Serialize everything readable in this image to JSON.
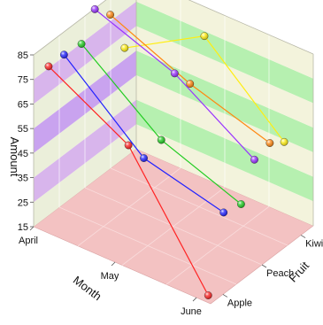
{
  "chart_data": {
    "type": "line",
    "subtype": "3d-line",
    "title": "",
    "xlabel": "Month",
    "ylabel": "Amount",
    "zlabel": "Fruit",
    "categories": [
      "April",
      "May",
      "June"
    ],
    "depth_categories": [
      "Apple",
      "Peach",
      "Kiwi"
    ],
    "ylim": [
      15,
      85
    ],
    "yticks": [
      15,
      25,
      35,
      45,
      55,
      65,
      75,
      85
    ],
    "grid": true,
    "legend": "none",
    "series": [
      {
        "color": "#ff2222",
        "depth": 0.0,
        "values": [
          80,
          62,
          15
        ]
      },
      {
        "color": "#2222ff",
        "depth": 0.15,
        "values": [
          80,
          52,
          44
        ]
      },
      {
        "color": "#22cc22",
        "depth": 0.32,
        "values": [
          79,
          54,
          42
        ]
      },
      {
        "color": "#9933ff",
        "depth": 0.45,
        "values": [
          89,
          77,
          56
        ]
      },
      {
        "color": "#ff8811",
        "depth": 0.6,
        "values": [
          82,
          68,
          58
        ]
      },
      {
        "color": "#ffee11",
        "depth": 0.74,
        "values": [
          64,
          83,
          54
        ]
      }
    ],
    "colors": {
      "back_wall_band_light": "#ebefda",
      "back_wall_band_dark": "#d8b5ec",
      "back_wall_band_dark_mid": "#c9a3ef",
      "side_wall_band_light": "#f3f3dc",
      "side_wall_band_dark": "#b6f0b0",
      "floor": "#f3c2c2",
      "floor_light": "#f9dcdc"
    }
  }
}
